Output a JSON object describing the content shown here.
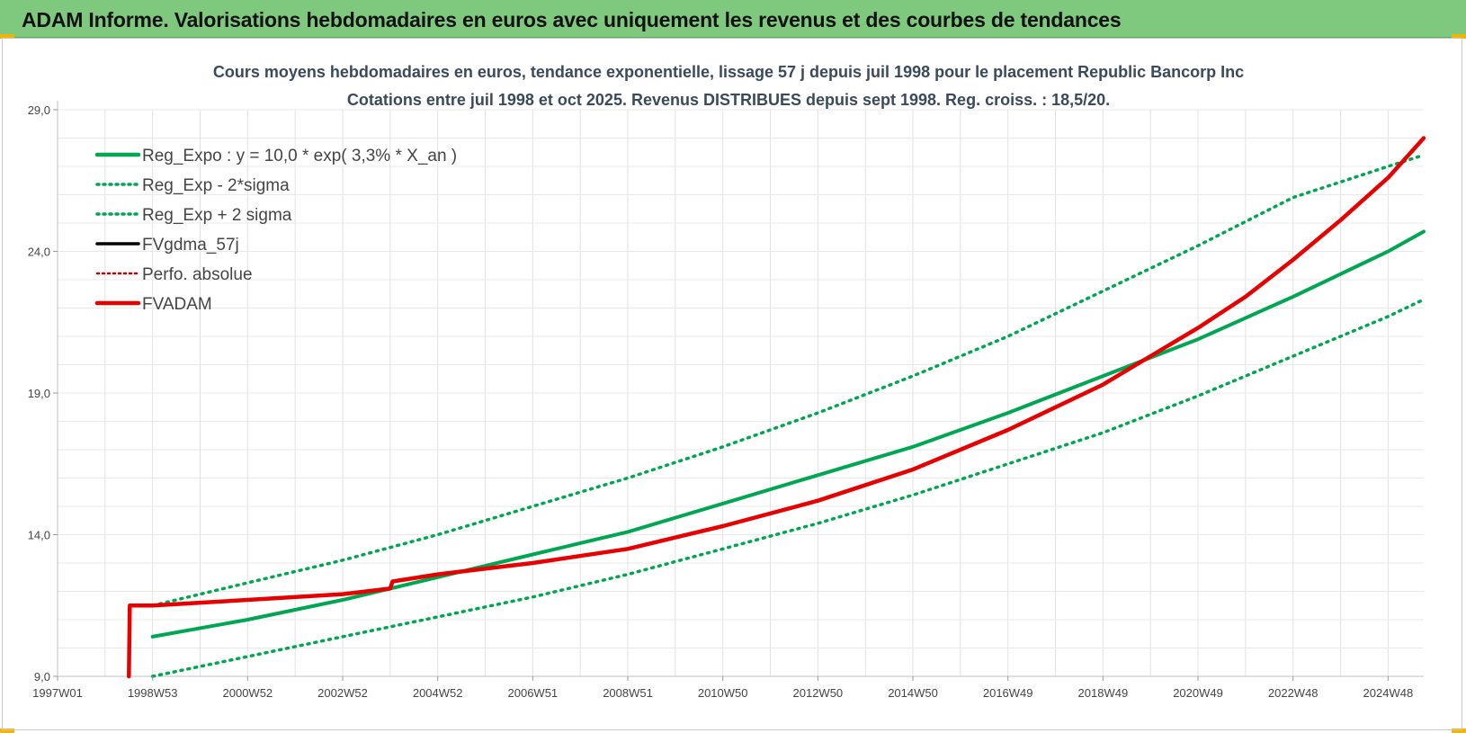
{
  "header": {
    "title": "ADAM Informe. Valorisations hebdomadaires en euros avec uniquement les revenus et des courbes de tendances"
  },
  "colors": {
    "header_bg": "#7fc97f",
    "trend": "#00a651",
    "fvadam": "#e60000",
    "fvgdma": "#000000",
    "perfo": "#c00000"
  },
  "chart_data": {
    "type": "line",
    "title_line1": "Cours moyens hebdomadaires en euros, tendance exponentielle, lissage 57 j depuis juil 1998 pour le placement Republic Bancorp Inc",
    "title_line2": "Cotations entre juil 1998 et oct 2025. Revenus DISTRIBUES depuis sept 1998. Reg. croiss. : 18,5/20.",
    "xlabel": "",
    "ylabel": "",
    "ylim": [
      9.0,
      29.0
    ],
    "xlim": [
      1997.0,
      2025.75
    ],
    "y_ticks": [
      "9,0",
      "14,0",
      "19,0",
      "24,0",
      "29,0"
    ],
    "y_tick_values": [
      9.0,
      14.0,
      19.0,
      24.0,
      29.0
    ],
    "x_tick_labels": [
      "1997W01",
      "1998W53",
      "2000W52",
      "2002W52",
      "2004W52",
      "2006W51",
      "2008W51",
      "2010W50",
      "2012W50",
      "2014W50",
      "2016W49",
      "2018W49",
      "2020W49",
      "2022W48",
      "2024W48"
    ],
    "x_tick_values": [
      1997.0,
      1999.0,
      2001.0,
      2003.0,
      2005.0,
      2007.0,
      2009.0,
      2011.0,
      2013.0,
      2015.0,
      2017.0,
      2019.0,
      2021.0,
      2023.0,
      2025.0
    ],
    "legend_position": "top-left",
    "legend": [
      "Reg_Expo : y = 10,0 * exp( 3,3% *  X_an )",
      "Reg_Exp - 2*sigma",
      "Reg_Exp + 2 sigma",
      "FVgdma_57j",
      "Perfo. absolue",
      "FVADAM"
    ],
    "series": [
      {
        "name": "Reg_Expo",
        "style": "solid",
        "x": [
          1999.0,
          2001.0,
          2003.0,
          2005.0,
          2007.0,
          2009.0,
          2011.0,
          2013.0,
          2015.0,
          2017.0,
          2019.0,
          2021.0,
          2023.0,
          2025.0,
          2025.75
        ],
        "values": [
          10.4,
          11.0,
          11.7,
          12.5,
          13.3,
          14.1,
          15.1,
          16.1,
          17.1,
          18.3,
          19.6,
          20.9,
          22.4,
          24.0,
          24.7
        ]
      },
      {
        "name": "Reg_Exp - 2*sigma",
        "style": "dotted",
        "x": [
          1999.0,
          2001.0,
          2003.0,
          2005.0,
          2007.0,
          2009.0,
          2011.0,
          2013.0,
          2015.0,
          2017.0,
          2019.0,
          2021.0,
          2023.0,
          2025.0,
          2025.75
        ],
        "values": [
          9.0,
          9.7,
          10.4,
          11.1,
          11.8,
          12.6,
          13.5,
          14.4,
          15.4,
          16.5,
          17.6,
          18.9,
          20.3,
          21.7,
          22.3
        ]
      },
      {
        "name": "Reg_Exp + 2 sigma",
        "style": "dotted",
        "x": [
          1999.0,
          2001.0,
          2003.0,
          2005.0,
          2007.0,
          2009.0,
          2011.0,
          2013.0,
          2015.0,
          2017.0,
          2019.0,
          2021.0,
          2023.0,
          2025.0,
          2025.75
        ],
        "values": [
          11.5,
          12.3,
          13.1,
          14.0,
          15.0,
          16.0,
          17.1,
          18.3,
          19.6,
          21.0,
          22.6,
          24.2,
          25.9,
          27.0,
          27.4
        ]
      },
      {
        "name": "FVADAM",
        "style": "solid-thick",
        "x": [
          1998.5,
          1998.52,
          1999.0,
          2001.0,
          2003.0,
          2004.0,
          2004.05,
          2005.0,
          2007.0,
          2009.0,
          2011.0,
          2013.0,
          2015.0,
          2017.0,
          2019.0,
          2020.0,
          2021.0,
          2022.0,
          2023.0,
          2024.0,
          2025.0,
          2025.75
        ],
        "values": [
          9.0,
          11.5,
          11.5,
          11.7,
          11.9,
          12.1,
          12.35,
          12.6,
          13.0,
          13.5,
          14.3,
          15.2,
          16.3,
          17.7,
          19.3,
          20.3,
          21.3,
          22.4,
          23.7,
          25.1,
          26.6,
          28.0
        ]
      }
    ]
  }
}
